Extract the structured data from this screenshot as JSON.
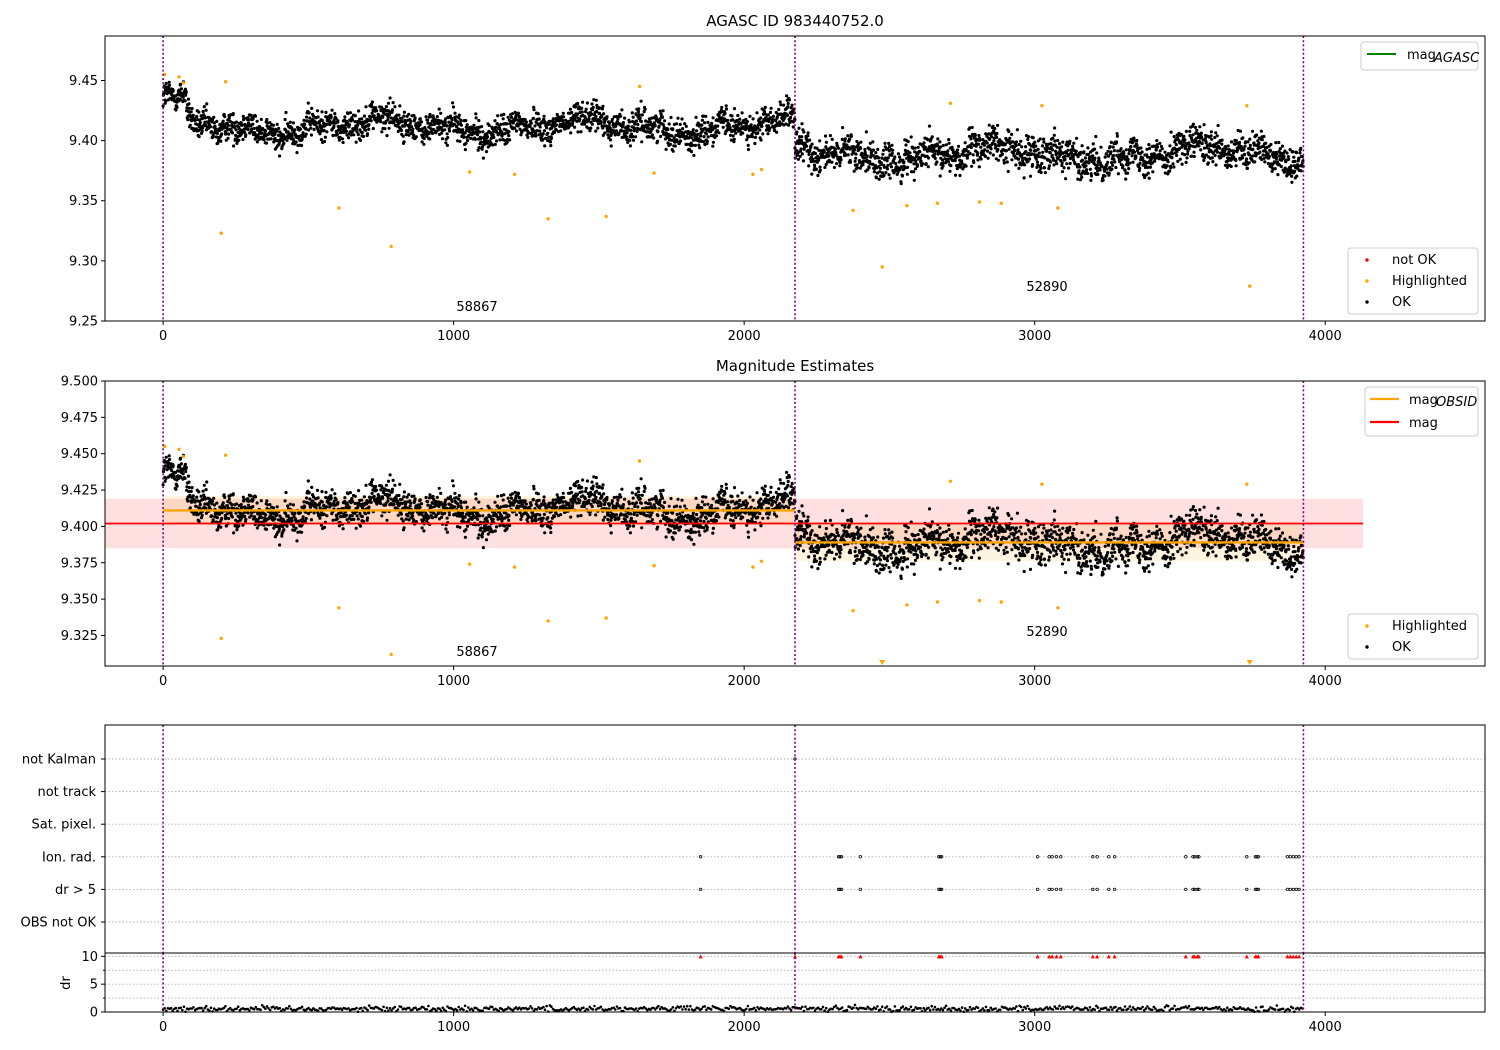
{
  "panels": {
    "top": {
      "title": "AGASC ID 983440752.0"
    },
    "mid": {
      "title": "Magnitude Estimates"
    }
  },
  "legends": {
    "top_line": {
      "label": "mag",
      "sub": "AGASC",
      "color": "#008000"
    },
    "top_points": [
      {
        "label": "not OK",
        "color": "#ff0000"
      },
      {
        "label": "Highlighted",
        "color": "#ffa500"
      },
      {
        "label": "OK",
        "color": "#000000"
      }
    ],
    "mid_lines": [
      {
        "label": "mag",
        "sub": "OBSID",
        "color": "#ffa500"
      },
      {
        "label": "mag",
        "sub": "",
        "color": "#ff0000"
      }
    ],
    "mid_points": [
      {
        "label": "Highlighted",
        "color": "#ffa500"
      },
      {
        "label": "OK",
        "color": "#000000"
      }
    ]
  },
  "chart_data": [
    {
      "type": "scatter",
      "title": "AGASC ID 983440752.0",
      "xlabel": "",
      "ylabel": "",
      "xlim": [
        -200,
        4550
      ],
      "ylim": [
        9.25,
        9.487
      ],
      "yticks": [
        "9.25",
        "9.30",
        "9.35",
        "9.40",
        "9.45"
      ],
      "xticks": [
        "0",
        "1000",
        "2000",
        "3000",
        "4000"
      ],
      "observation_boundaries": [
        0,
        2175,
        3925
      ],
      "observations": [
        {
          "obsid": "58867",
          "x_range": [
            0,
            2175
          ],
          "mean": 9.412,
          "spread": 0.011
        },
        {
          "obsid": "52890",
          "x_range": [
            2175,
            3925
          ],
          "mean": 9.389,
          "spread": 0.013
        }
      ],
      "highlighted": [
        [
          5,
          9.455
        ],
        [
          55,
          9.453
        ],
        [
          70,
          9.448
        ],
        [
          200,
          9.323
        ],
        [
          215,
          9.449
        ],
        [
          605,
          9.344
        ],
        [
          785,
          9.312
        ],
        [
          1055,
          9.374
        ],
        [
          1210,
          9.372
        ],
        [
          1325,
          9.335
        ],
        [
          1525,
          9.337
        ],
        [
          1640,
          9.445
        ],
        [
          1690,
          9.373
        ],
        [
          2030,
          9.372
        ],
        [
          2060,
          9.376
        ],
        [
          2375,
          9.342
        ],
        [
          2475,
          9.295
        ],
        [
          2560,
          9.346
        ],
        [
          2665,
          9.348
        ],
        [
          2710,
          9.431
        ],
        [
          2810,
          9.349
        ],
        [
          2885,
          9.348
        ],
        [
          3025,
          9.429
        ],
        [
          3080,
          9.344
        ],
        [
          3730,
          9.429
        ],
        [
          3740,
          9.279
        ]
      ],
      "annotations": [
        "58867",
        "52890"
      ],
      "legend": "top-right (lines), bottom-right (points)"
    },
    {
      "type": "scatter",
      "title": "Magnitude Estimates",
      "xlim": [
        -200,
        4550
      ],
      "ylim": [
        9.304,
        9.5
      ],
      "yticks": [
        "9.325",
        "9.350",
        "9.375",
        "9.400",
        "9.425",
        "9.450",
        "9.475",
        "9.500"
      ],
      "xticks": [
        "0",
        "1000",
        "2000",
        "3000",
        "4000"
      ],
      "mag": {
        "value": 9.402,
        "band": [
          9.385,
          9.419
        ],
        "x_range": [
          -200,
          4130
        ]
      },
      "mag_obsid": [
        {
          "x_range": [
            0,
            2175
          ],
          "value": 9.411,
          "band": [
            9.401,
            9.421
          ]
        },
        {
          "x_range": [
            2175,
            3925
          ],
          "value": 9.389,
          "band": [
            9.376,
            9.402
          ]
        }
      ],
      "offscale_markers_x": [
        2475,
        3740
      ],
      "annotations": [
        "58867",
        "52890"
      ],
      "legend": "top-right (lines), bottom-right (points)"
    },
    {
      "type": "scatter",
      "title": "",
      "xlim": [
        -200,
        4550
      ],
      "categories": [
        "not Kalman",
        "not track",
        "Sat. pixel.",
        "Ion. rad.",
        "dr > 5",
        "OBS not OK"
      ],
      "flag_x": {
        "not Kalman": [
          2175
        ],
        "Ion. rad.": [
          1850,
          2325,
          2330,
          2335,
          2400,
          2670,
          2675,
          2680,
          3010,
          3050,
          3060,
          3075,
          3090,
          3200,
          3215,
          3255,
          3275,
          3520,
          3545,
          3550,
          3560,
          3565,
          3730,
          3760,
          3765,
          3770,
          3870,
          3880,
          3890,
          3900,
          3910
        ],
        "dr > 5": [
          1850,
          2325,
          2330,
          2335,
          2400,
          2670,
          2675,
          2680,
          3010,
          3050,
          3060,
          3075,
          3090,
          3200,
          3215,
          3255,
          3275,
          3520,
          3545,
          3550,
          3560,
          3565,
          3730,
          3760,
          3765,
          3770,
          3870,
          3880,
          3890,
          3900,
          3910
        ]
      }
    },
    {
      "type": "scatter",
      "title": "",
      "ylabel": "dr",
      "xlim": [
        -200,
        4550
      ],
      "ylim": [
        0,
        10.6
      ],
      "yticks": [
        "0",
        "5",
        "10"
      ],
      "xticks": [
        "0",
        "1000",
        "2000",
        "3000",
        "4000"
      ],
      "dr_typical": 0.6,
      "clipped_x": [
        1850,
        2175,
        2325,
        2330,
        2335,
        2400,
        2670,
        2675,
        2680,
        3010,
        3050,
        3060,
        3075,
        3090,
        3200,
        3215,
        3255,
        3275,
        3520,
        3545,
        3550,
        3560,
        3565,
        3730,
        3760,
        3765,
        3770,
        3870,
        3880,
        3890,
        3900,
        3910
      ]
    }
  ]
}
